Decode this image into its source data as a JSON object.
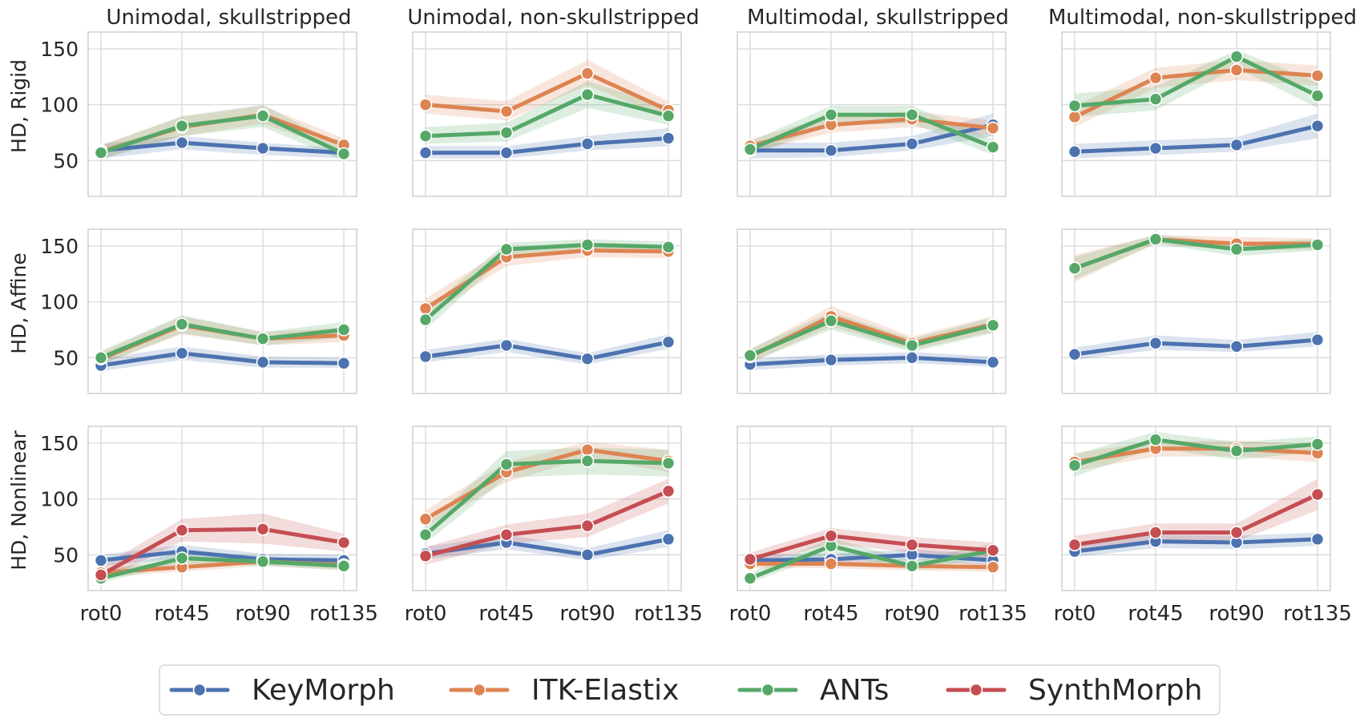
{
  "figure": {
    "col_titles": [
      "Unimodal, skullstripped",
      "Unimodal, non-skullstripped",
      "Multimodal, skullstripped",
      "Multimodal, non-skullstripped"
    ],
    "row_labels": [
      "HD, Rigid",
      "HD, Affine",
      "HD, Nonlinear"
    ],
    "colors": {
      "KeyMorph": "#4c72b0",
      "ITK-Elastix": "#dd8452",
      "ANTs": "#55a868",
      "SynthMorph": "#c44e52"
    },
    "legend": [
      "KeyMorph",
      "ITK-Elastix",
      "ANTs",
      "SynthMorph"
    ]
  },
  "chart_data": [
    {
      "type": "line",
      "row": "HD, Rigid",
      "col": "Unimodal, skullstripped",
      "categories": [
        "rot0",
        "rot45",
        "rot90",
        "rot135"
      ],
      "ylim": [
        18,
        165
      ],
      "yticks": [
        50,
        100,
        150
      ],
      "series": [
        {
          "name": "KeyMorph",
          "values": [
            59,
            66,
            61,
            57
          ],
          "ci_low": [
            52,
            60,
            55,
            52
          ],
          "ci_high": [
            65,
            72,
            66,
            61
          ]
        },
        {
          "name": "ITK-Elastix",
          "values": [
            58,
            80,
            91,
            64
          ],
          "ci_low": [
            52,
            72,
            83,
            58
          ],
          "ci_high": [
            64,
            89,
            99,
            70
          ]
        },
        {
          "name": "ANTs",
          "values": [
            57,
            81,
            90,
            56
          ],
          "ci_low": [
            51,
            72,
            80,
            50
          ],
          "ci_high": [
            63,
            90,
            100,
            62
          ]
        }
      ]
    },
    {
      "type": "line",
      "row": "HD, Rigid",
      "col": "Unimodal, non-skullstripped",
      "categories": [
        "rot0",
        "rot45",
        "rot90",
        "rot135"
      ],
      "ylim": [
        18,
        165
      ],
      "yticks": [
        50,
        100,
        150
      ],
      "series": [
        {
          "name": "KeyMorph",
          "values": [
            57,
            57,
            65,
            70
          ],
          "ci_low": [
            52,
            52,
            59,
            63
          ],
          "ci_high": [
            63,
            63,
            72,
            79
          ]
        },
        {
          "name": "ITK-Elastix",
          "values": [
            100,
            94,
            128,
            95
          ],
          "ci_low": [
            92,
            86,
            117,
            88
          ],
          "ci_high": [
            109,
            103,
            140,
            103
          ]
        },
        {
          "name": "ANTs",
          "values": [
            72,
            75,
            109,
            90
          ],
          "ci_low": [
            65,
            67,
            97,
            82
          ],
          "ci_high": [
            80,
            84,
            121,
            98
          ]
        }
      ]
    },
    {
      "type": "line",
      "row": "HD, Rigid",
      "col": "Multimodal, skullstripped",
      "categories": [
        "rot0",
        "rot45",
        "rot90",
        "rot135"
      ],
      "ylim": [
        18,
        165
      ],
      "yticks": [
        50,
        100,
        150
      ],
      "series": [
        {
          "name": "KeyMorph",
          "values": [
            59,
            59,
            65,
            82
          ],
          "ci_low": [
            52,
            53,
            59,
            72
          ],
          "ci_high": [
            66,
            66,
            72,
            92
          ]
        },
        {
          "name": "ITK-Elastix",
          "values": [
            63,
            82,
            87,
            79
          ],
          "ci_low": [
            57,
            75,
            80,
            72
          ],
          "ci_high": [
            69,
            90,
            94,
            86
          ]
        },
        {
          "name": "ANTs",
          "values": [
            60,
            91,
            91,
            62
          ],
          "ci_low": [
            54,
            82,
            83,
            55
          ],
          "ci_high": [
            67,
            99,
            99,
            69
          ]
        }
      ]
    },
    {
      "type": "line",
      "row": "HD, Rigid",
      "col": "Multimodal, non-skullstripped",
      "categories": [
        "rot0",
        "rot45",
        "rot90",
        "rot135"
      ],
      "ylim": [
        18,
        165
      ],
      "yticks": [
        50,
        100,
        150
      ],
      "series": [
        {
          "name": "KeyMorph",
          "values": [
            58,
            61,
            64,
            81
          ],
          "ci_low": [
            52,
            55,
            58,
            70
          ],
          "ci_high": [
            65,
            68,
            71,
            92
          ]
        },
        {
          "name": "ITK-Elastix",
          "values": [
            89,
            124,
            131,
            126
          ],
          "ci_low": [
            80,
            115,
            122,
            117
          ],
          "ci_high": [
            99,
            133,
            140,
            135
          ]
        },
        {
          "name": "ANTs",
          "values": [
            99,
            105,
            143,
            108
          ],
          "ci_low": [
            89,
            95,
            133,
            97
          ],
          "ci_high": [
            110,
            116,
            149,
            120
          ]
        }
      ]
    },
    {
      "type": "line",
      "row": "HD, Affine",
      "col": "Unimodal, skullstripped",
      "categories": [
        "rot0",
        "rot45",
        "rot90",
        "rot135"
      ],
      "ylim": [
        18,
        165
      ],
      "yticks": [
        50,
        100,
        150
      ],
      "series": [
        {
          "name": "KeyMorph",
          "values": [
            43,
            54,
            46,
            45
          ],
          "ci_low": [
            38,
            48,
            41,
            41
          ],
          "ci_high": [
            49,
            60,
            51,
            50
          ]
        },
        {
          "name": "ITK-Elastix",
          "values": [
            49,
            79,
            67,
            70
          ],
          "ci_low": [
            44,
            71,
            61,
            64
          ],
          "ci_high": [
            55,
            87,
            73,
            77
          ]
        },
        {
          "name": "ANTs",
          "values": [
            50,
            80,
            67,
            75
          ],
          "ci_low": [
            44,
            72,
            61,
            68
          ],
          "ci_high": [
            56,
            88,
            73,
            82
          ]
        }
      ]
    },
    {
      "type": "line",
      "row": "HD, Affine",
      "col": "Unimodal, non-skullstripped",
      "categories": [
        "rot0",
        "rot45",
        "rot90",
        "rot135"
      ],
      "ylim": [
        18,
        165
      ],
      "yticks": [
        50,
        100,
        150
      ],
      "series": [
        {
          "name": "KeyMorph",
          "values": [
            51,
            61,
            49,
            64
          ],
          "ci_low": [
            46,
            55,
            44,
            58
          ],
          "ci_high": [
            57,
            67,
            54,
            71
          ]
        },
        {
          "name": "ITK-Elastix",
          "values": [
            94,
            140,
            146,
            145
          ],
          "ci_low": [
            86,
            132,
            140,
            139
          ],
          "ci_high": [
            103,
            148,
            152,
            151
          ]
        },
        {
          "name": "ANTs",
          "values": [
            84,
            147,
            151,
            149
          ],
          "ci_low": [
            75,
            141,
            146,
            144
          ],
          "ci_high": [
            93,
            153,
            156,
            154
          ]
        }
      ]
    },
    {
      "type": "line",
      "row": "HD, Affine",
      "col": "Multimodal, skullstripped",
      "categories": [
        "rot0",
        "rot45",
        "rot90",
        "rot135"
      ],
      "ylim": [
        18,
        165
      ],
      "yticks": [
        50,
        100,
        150
      ],
      "series": [
        {
          "name": "KeyMorph",
          "values": [
            44,
            48,
            50,
            46
          ],
          "ci_low": [
            39,
            43,
            45,
            42
          ],
          "ci_high": [
            49,
            53,
            55,
            51
          ]
        },
        {
          "name": "ITK-Elastix",
          "values": [
            51,
            87,
            63,
            80
          ],
          "ci_low": [
            45,
            78,
            57,
            73
          ],
          "ci_high": [
            57,
            96,
            69,
            87
          ]
        },
        {
          "name": "ANTs",
          "values": [
            52,
            83,
            61,
            79
          ],
          "ci_low": [
            46,
            75,
            55,
            72
          ],
          "ci_high": [
            58,
            91,
            67,
            86
          ]
        }
      ]
    },
    {
      "type": "line",
      "row": "HD, Affine",
      "col": "Multimodal, non-skullstripped",
      "categories": [
        "rot0",
        "rot45",
        "rot90",
        "rot135"
      ],
      "ylim": [
        18,
        165
      ],
      "yticks": [
        50,
        100,
        150
      ],
      "series": [
        {
          "name": "KeyMorph",
          "values": [
            53,
            63,
            60,
            66
          ],
          "ci_low": [
            48,
            57,
            55,
            60
          ],
          "ci_high": [
            59,
            70,
            66,
            73
          ]
        },
        {
          "name": "ITK-Elastix",
          "values": [
            130,
            156,
            152,
            152
          ],
          "ci_low": [
            118,
            152,
            146,
            147
          ],
          "ci_high": [
            142,
            160,
            158,
            157
          ]
        },
        {
          "name": "ANTs",
          "values": [
            130,
            156,
            147,
            151
          ],
          "ci_low": [
            120,
            152,
            141,
            146
          ],
          "ci_high": [
            140,
            160,
            153,
            156
          ]
        }
      ]
    },
    {
      "type": "line",
      "row": "HD, Nonlinear",
      "col": "Unimodal, skullstripped",
      "categories": [
        "rot0",
        "rot45",
        "rot90",
        "rot135"
      ],
      "ylim": [
        18,
        165
      ],
      "yticks": [
        50,
        100,
        150
      ],
      "series": [
        {
          "name": "KeyMorph",
          "values": [
            45,
            53,
            46,
            45
          ],
          "ci_low": [
            40,
            47,
            41,
            41
          ],
          "ci_high": [
            50,
            59,
            51,
            50
          ]
        },
        {
          "name": "ITK-Elastix",
          "values": [
            34,
            39,
            44,
            41
          ],
          "ci_low": [
            30,
            35,
            40,
            37
          ],
          "ci_high": [
            38,
            44,
            48,
            45
          ]
        },
        {
          "name": "ANTs",
          "values": [
            29,
            47,
            44,
            40
          ],
          "ci_low": [
            25,
            42,
            40,
            36
          ],
          "ci_high": [
            34,
            53,
            49,
            44
          ]
        },
        {
          "name": "SynthMorph",
          "values": [
            32,
            72,
            73,
            61
          ],
          "ci_low": [
            26,
            62,
            60,
            53
          ],
          "ci_high": [
            39,
            82,
            87,
            69
          ]
        }
      ]
    },
    {
      "type": "line",
      "row": "HD, Nonlinear",
      "col": "Unimodal, non-skullstripped",
      "categories": [
        "rot0",
        "rot45",
        "rot90",
        "rot135"
      ],
      "ylim": [
        18,
        165
      ],
      "yticks": [
        50,
        100,
        150
      ],
      "series": [
        {
          "name": "KeyMorph",
          "values": [
            51,
            61,
            50,
            64
          ],
          "ci_low": [
            46,
            55,
            45,
            57
          ],
          "ci_high": [
            57,
            68,
            56,
            72
          ]
        },
        {
          "name": "ITK-Elastix",
          "values": [
            82,
            124,
            144,
            134
          ],
          "ci_low": [
            75,
            115,
            137,
            124
          ],
          "ci_high": [
            90,
            133,
            151,
            144
          ]
        },
        {
          "name": "ANTs",
          "values": [
            68,
            131,
            134,
            132
          ],
          "ci_low": [
            60,
            119,
            122,
            120
          ],
          "ci_high": [
            76,
            143,
            146,
            144
          ]
        },
        {
          "name": "SynthMorph",
          "values": [
            49,
            68,
            76,
            107
          ],
          "ci_low": [
            41,
            60,
            66,
            96
          ],
          "ci_high": [
            57,
            77,
            87,
            118
          ]
        }
      ]
    },
    {
      "type": "line",
      "row": "HD, Nonlinear",
      "col": "Multimodal, skullstripped",
      "categories": [
        "rot0",
        "rot45",
        "rot90",
        "rot135"
      ],
      "ylim": [
        18,
        165
      ],
      "yticks": [
        50,
        100,
        150
      ],
      "series": [
        {
          "name": "KeyMorph",
          "values": [
            45,
            46,
            50,
            45
          ],
          "ci_low": [
            40,
            41,
            45,
            40
          ],
          "ci_high": [
            50,
            51,
            55,
            50
          ]
        },
        {
          "name": "ITK-Elastix",
          "values": [
            42,
            42,
            40,
            39
          ],
          "ci_low": [
            38,
            38,
            36,
            35
          ],
          "ci_high": [
            46,
            46,
            44,
            43
          ]
        },
        {
          "name": "ANTs",
          "values": [
            29,
            58,
            40,
            54
          ],
          "ci_low": [
            25,
            52,
            36,
            48
          ],
          "ci_high": [
            34,
            65,
            45,
            60
          ]
        },
        {
          "name": "SynthMorph",
          "values": [
            46,
            67,
            59,
            54
          ],
          "ci_low": [
            40,
            60,
            52,
            47
          ],
          "ci_high": [
            52,
            74,
            66,
            61
          ]
        }
      ]
    },
    {
      "type": "line",
      "row": "HD, Nonlinear",
      "col": "Multimodal, non-skullstripped",
      "categories": [
        "rot0",
        "rot45",
        "rot90",
        "rot135"
      ],
      "ylim": [
        18,
        165
      ],
      "yticks": [
        50,
        100,
        150
      ],
      "series": [
        {
          "name": "KeyMorph",
          "values": [
            53,
            62,
            61,
            64
          ],
          "ci_low": [
            48,
            56,
            55,
            58
          ],
          "ci_high": [
            59,
            68,
            67,
            70
          ]
        },
        {
          "name": "ITK-Elastix",
          "values": [
            133,
            145,
            145,
            141
          ],
          "ci_low": [
            125,
            138,
            138,
            133
          ],
          "ci_high": [
            141,
            152,
            152,
            149
          ]
        },
        {
          "name": "ANTs",
          "values": [
            130,
            153,
            143,
            149
          ],
          "ci_low": [
            120,
            146,
            135,
            142
          ],
          "ci_high": [
            140,
            160,
            151,
            156
          ]
        },
        {
          "name": "SynthMorph",
          "values": [
            59,
            70,
            70,
            104
          ],
          "ci_low": [
            51,
            62,
            62,
            90
          ],
          "ci_high": [
            67,
            78,
            78,
            118
          ]
        }
      ]
    }
  ]
}
